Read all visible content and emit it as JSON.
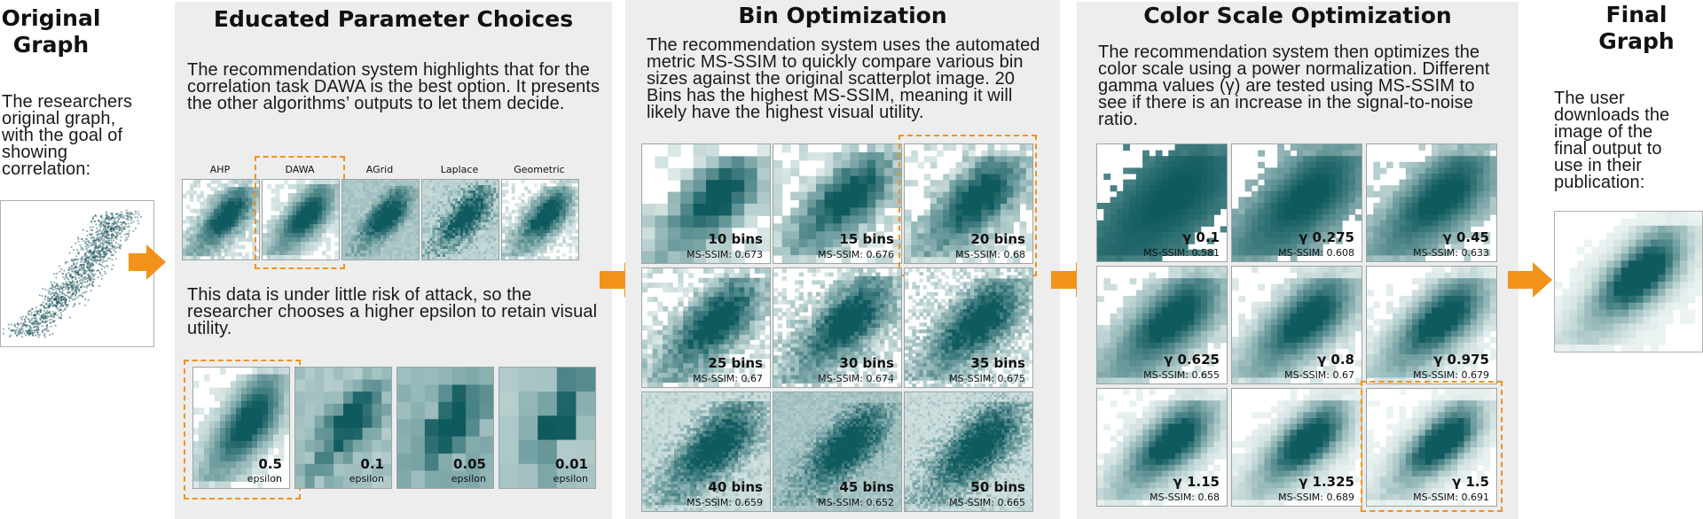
{
  "original": {
    "title": "Original Graph",
    "text": "The researchers original graph, with the goal of showing correlation:"
  },
  "educated": {
    "title": "Educated Parameter Choices",
    "text1": "The recommendation system highlights that for the correlation task DAWA is the best option. It presents the other algorithms’ outputs to let them decide.",
    "algorithms": [
      "AHP",
      "DAWA",
      "AGrid",
      "Laplace",
      "Geometric"
    ],
    "selected_algorithm": "DAWA",
    "text2": "This data is under little risk of attack, so the researcher chooses a higher epsilon to retain visual utility.",
    "epsilons": [
      {
        "value": "0.5",
        "unit": "epsilon"
      },
      {
        "value": "0.1",
        "unit": "epsilon"
      },
      {
        "value": "0.05",
        "unit": "epsilon"
      },
      {
        "value": "0.01",
        "unit": "epsilon"
      }
    ],
    "selected_epsilon": "0.5"
  },
  "bins": {
    "title": "Bin Optimization",
    "text": "The recommendation system uses the automated metric MS-SSIM to quickly compare various bin sizes against the original scatterplot image. 20 Bins has the highest MS-SSIM, meaning it will likely have the highest visual utility.",
    "items": [
      {
        "label": "10 bins",
        "score": "MS-SSIM: 0.673"
      },
      {
        "label": "15 bins",
        "score": "MS-SSIM: 0.676"
      },
      {
        "label": "20 bins",
        "score": "MS-SSIM: 0.68"
      },
      {
        "label": "25 bins",
        "score": "MS-SSIM: 0.67"
      },
      {
        "label": "30 bins",
        "score": "MS-SSIM: 0.674"
      },
      {
        "label": "35 bins",
        "score": "MS-SSIM: 0.675"
      },
      {
        "label": "40 bins",
        "score": "MS-SSIM: 0.659"
      },
      {
        "label": "45 bins",
        "score": "MS-SSIM: 0.652"
      },
      {
        "label": "50 bins",
        "score": "MS-SSIM: 0.665"
      }
    ],
    "selected": "20 bins"
  },
  "color": {
    "title": "Color Scale Optimization",
    "text": "The recommendation system then optimizes the color scale using a  power normalization. Different gamma values (γ) are tested using MS-SSIM to see if there is an increase in the signal-to-noise ratio.",
    "items": [
      {
        "label": "γ 0.1",
        "score": "MS-SSIM: 0.581"
      },
      {
        "label": "γ 0.275",
        "score": "MS-SSIM: 0.608"
      },
      {
        "label": "γ 0.45",
        "score": "MS-SSIM: 0.633"
      },
      {
        "label": "γ 0.625",
        "score": "MS-SSIM: 0.655"
      },
      {
        "label": "γ 0.8",
        "score": "MS-SSIM: 0.67"
      },
      {
        "label": "γ 0.975",
        "score": "MS-SSIM: 0.679"
      },
      {
        "label": "γ 1.15",
        "score": "MS-SSIM: 0.68"
      },
      {
        "label": "γ 1.325",
        "score": "MS-SSIM: 0.689"
      },
      {
        "label": "γ 1.5",
        "score": "MS-SSIM: 0.691"
      }
    ],
    "selected": "γ 1.5"
  },
  "final": {
    "title": "Final Graph",
    "text": "The user downloads the image of the final output to use in their publication:"
  },
  "colors": {
    "panel_bg": "#ededed",
    "arrow": "#f39219",
    "highlight": "#f39219",
    "heatmap_dark": "#0f5a5e",
    "heatmap_light": "#eef5f4"
  }
}
